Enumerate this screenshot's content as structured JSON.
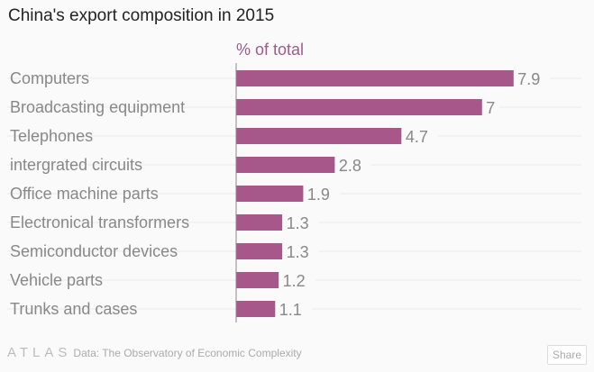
{
  "chart_data": {
    "type": "bar",
    "orientation": "horizontal",
    "title": "China's export composition in 2015",
    "subtitle": "% of total",
    "categories": [
      "Computers",
      "Broadcasting equipment",
      "Telephones",
      "intergrated circuits",
      "Office machine parts",
      "Electronical transformers",
      "Semiconductor devices",
      "Vehicle parts",
      "Trunks and cases"
    ],
    "values": [
      7.9,
      7,
      4.7,
      2.8,
      1.9,
      1.3,
      1.3,
      1.2,
      1.1
    ],
    "value_labels": [
      "7.9",
      "7",
      "4.7",
      "2.8",
      "1.9",
      "1.3",
      "1.3",
      "1.2",
      "1.1"
    ],
    "xlim": [
      0,
      9.4
    ],
    "grid": true,
    "bar_color": "#a8578a",
    "subtitle_color": "#9c5b89"
  },
  "footer": {
    "logo": "ATLAS",
    "source": "Data:  The Observatory of Economic Complexity",
    "share_label": "Share"
  }
}
